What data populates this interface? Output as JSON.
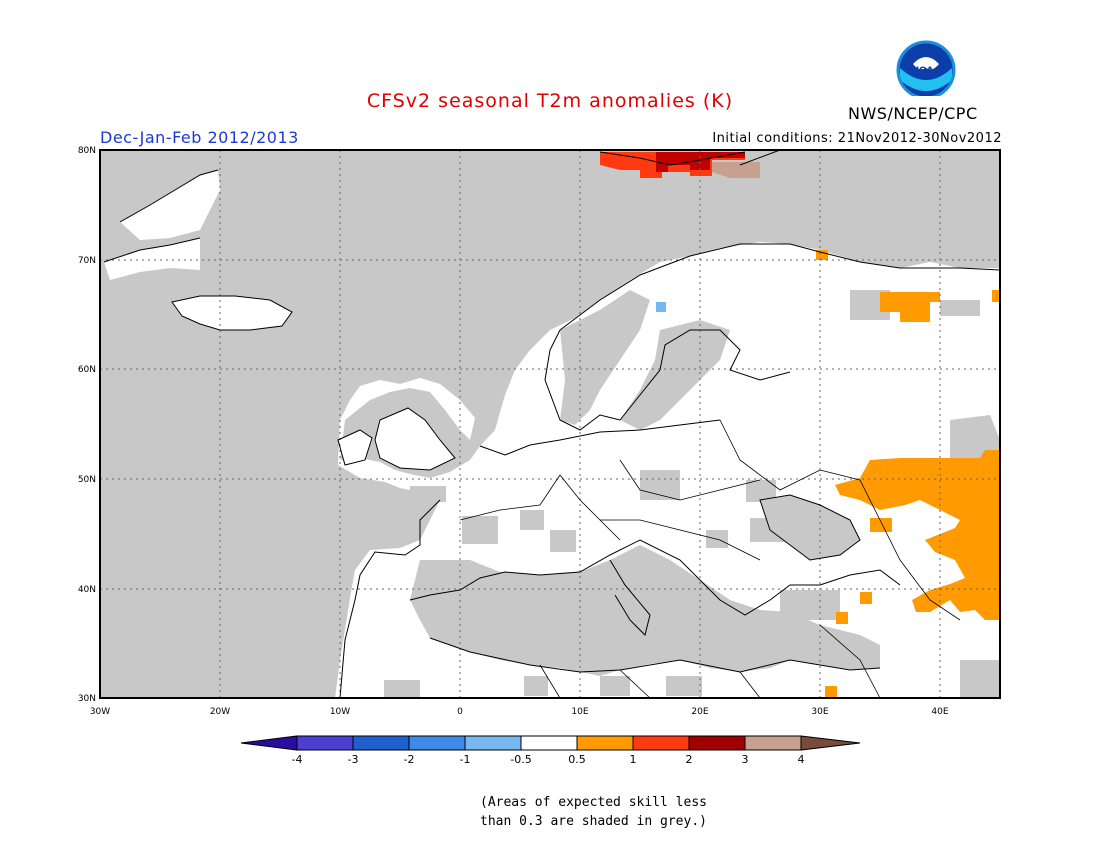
{
  "title": "CFSv2 seasonal T2m anomalies (K)",
  "season": "Dec-Jan-Feb 2012/2013",
  "initial_conditions": "Initial conditions: 21Nov2012-30Nov2012",
  "agency": "NWS/NCEP/CPC",
  "logo_text": "NOAA",
  "lat_ticks": [
    "80N",
    "70N",
    "60N",
    "50N",
    "40N",
    "30N"
  ],
  "lon_ticks": [
    "30W",
    "20W",
    "10W",
    "0",
    "10E",
    "20E",
    "30E",
    "40E"
  ],
  "colorbar": {
    "labels": [
      "-4",
      "-3",
      "-2",
      "-1",
      "-0.5",
      "0.5",
      "1",
      "2",
      "3",
      "4"
    ],
    "colors": [
      "#2a0d9e",
      "#4a3fd0",
      "#1f5fd0",
      "#3d8ae8",
      "#78b8f0",
      "#ffffff",
      "#ff9a00",
      "#ff3a10",
      "#a00000",
      "#c8a090",
      "#7a4a3a"
    ]
  },
  "note_line1": "(Areas of expected skill less",
  "note_line2": "than 0.3 are shaded in grey.)",
  "colors": {
    "grey_mask": "#c8c8c8",
    "title": "#e00000",
    "season": "#1a3ad6"
  }
}
